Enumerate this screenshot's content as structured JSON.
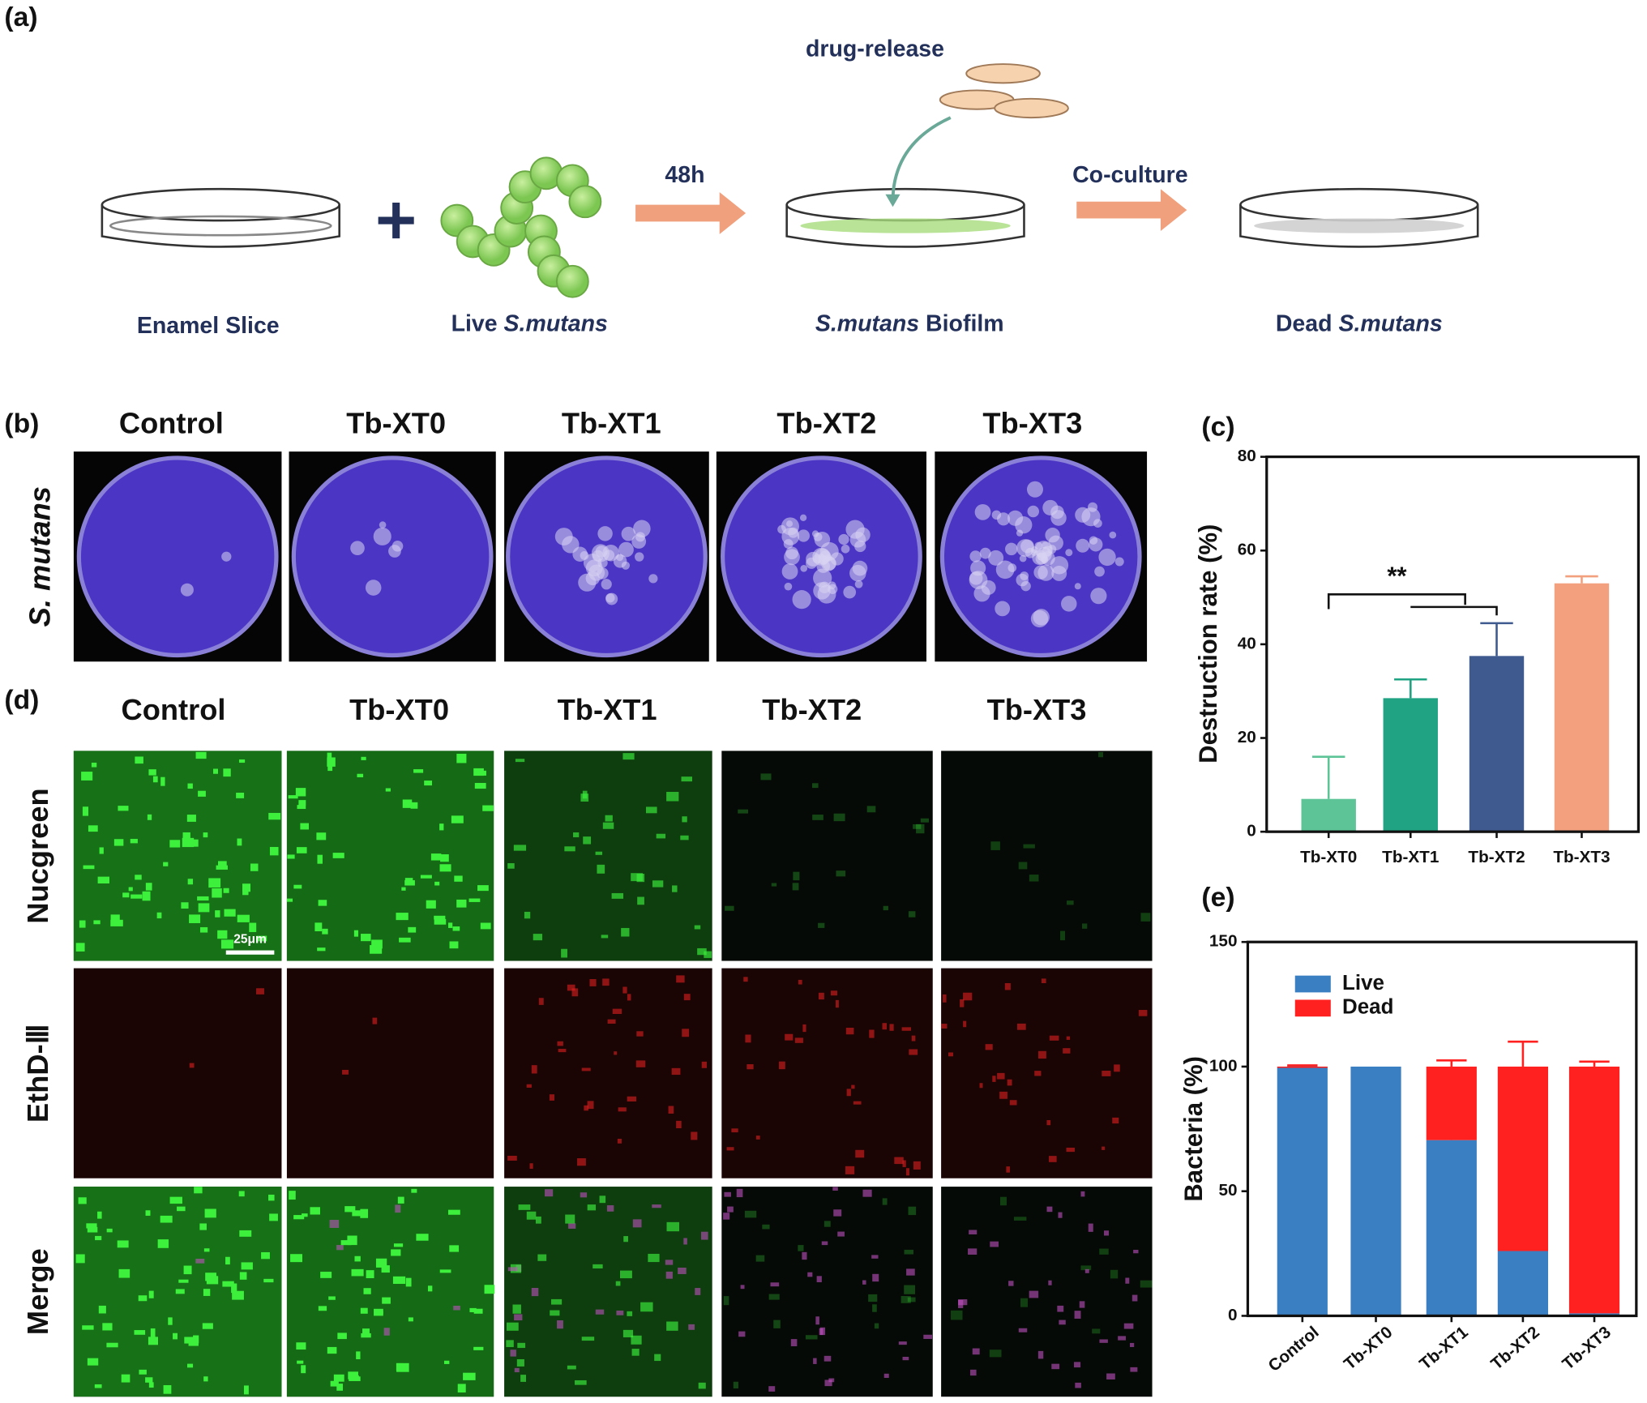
{
  "panel_a": {
    "label": "(a)",
    "drug_release": "drug-release",
    "arrow_1": "48h",
    "arrow_2": "Co-culture",
    "steps": [
      {
        "text": "Enamel Slice"
      },
      {
        "text": "Live",
        "italic": "S.mutans"
      },
      {
        "italic": "S.mutans",
        "text": "Biofilm"
      },
      {
        "text": "Dead",
        "italic": "S.mutans"
      }
    ]
  },
  "panel_b": {
    "label": "(b)",
    "columns": [
      "Control",
      "Tb-XT0",
      "Tb-XT1",
      "Tb-XT2",
      "Tb-XT3"
    ],
    "row_label": "S. mutans"
  },
  "panel_d": {
    "label": "(d)",
    "columns": [
      "Control",
      "Tb-XT0",
      "Tb-XT1",
      "Tb-XT2",
      "Tb-XT3"
    ],
    "rows": [
      "Nucgreen",
      "EthD-Ⅲ",
      "Merge"
    ],
    "scale_bar": "25μm"
  },
  "chart_data": [
    {
      "type": "bar",
      "panel": "(c)",
      "y_label": "Destruction rate (%)",
      "categories": [
        "Tb-XT0",
        "Tb-XT1",
        "Tb-XT2",
        "Tb-XT3"
      ],
      "values": [
        7,
        28.5,
        37.5,
        53
      ],
      "errors": [
        9,
        4,
        7,
        1.5
      ],
      "colors": [
        "#5cc496",
        "#1fa383",
        "#3f5a8f",
        "#f2a07e"
      ],
      "ylim": [
        0,
        80
      ],
      "yticks": [
        0,
        20,
        40,
        60,
        80
      ],
      "annotation": "**"
    },
    {
      "type": "stacked_bar",
      "panel": "(e)",
      "y_label": "Bacteria (%)",
      "categories": [
        "Control",
        "Tb-XT0",
        "Tb-XT1",
        "Tb-XT2",
        "Tb-XT3"
      ],
      "series": [
        {
          "name": "Live",
          "color": "#3a7fc1",
          "values": [
            99.5,
            100,
            70.5,
            26,
            1
          ],
          "errors": [
            0.5,
            0,
            2,
            10,
            2
          ]
        },
        {
          "name": "Dead",
          "color": "#ff2020",
          "values": [
            0.5,
            0,
            29.5,
            74,
            99
          ],
          "errors": [
            0.5,
            0,
            2.5,
            10,
            2
          ]
        }
      ],
      "ylim": [
        0,
        150
      ],
      "yticks": [
        0,
        50,
        100,
        150
      ],
      "legend": "upper left",
      "xtick_rotation": -40
    }
  ]
}
